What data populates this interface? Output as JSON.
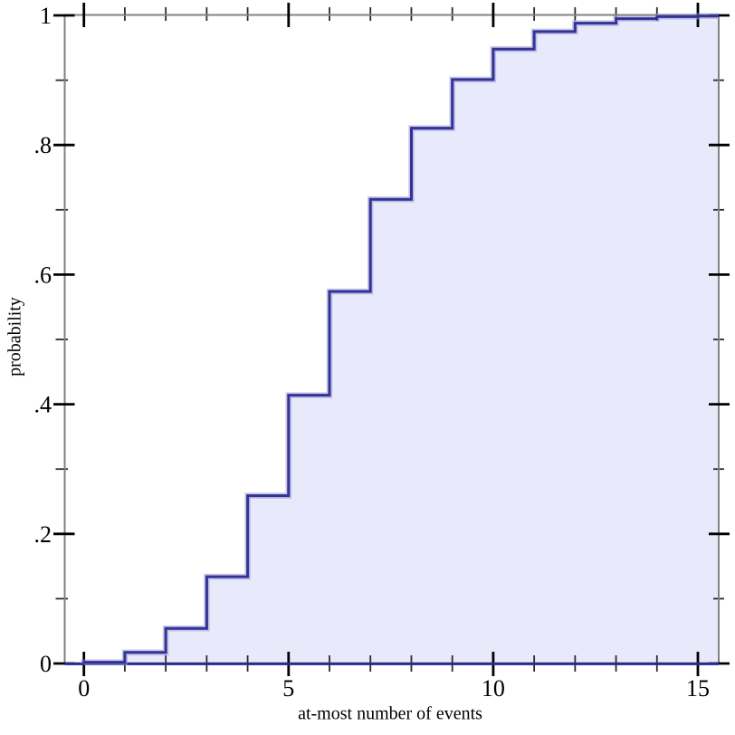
{
  "chart_data": {
    "type": "area",
    "subtype": "step-cdf",
    "title": "",
    "xlabel": "at-most number of events",
    "ylabel": "probability",
    "x": [
      0,
      1,
      2,
      3,
      4,
      5,
      6,
      7,
      8,
      9,
      10,
      11,
      12,
      13,
      14,
      15
    ],
    "cdf_values": [
      0.002,
      0.017,
      0.054,
      0.134,
      0.259,
      0.414,
      0.574,
      0.716,
      0.826,
      0.901,
      0.948,
      0.975,
      0.988,
      0.995,
      0.998,
      0.999
    ],
    "xlim": [
      -0.47,
      15.51
    ],
    "ylim": [
      0,
      1
    ],
    "grid": false,
    "legend": null,
    "x_major_ticks": {
      "values": [
        0,
        5,
        10,
        15
      ],
      "labels": [
        "0",
        "5",
        "10",
        "15"
      ]
    },
    "x_minor_ticks": [
      1,
      2,
      3,
      4,
      6,
      7,
      8,
      9,
      11,
      12,
      13,
      14
    ],
    "y_major_ticks": {
      "values": [
        0,
        0.2,
        0.4,
        0.6,
        0.8,
        1
      ],
      "labels": [
        "0",
        ".2",
        ".4",
        ".6",
        ".8",
        "1"
      ]
    },
    "y_minor_ticks": [
      0.1,
      0.3,
      0.5,
      0.7,
      0.9
    ],
    "colors": {
      "line": "#32329a",
      "line_halo": "#9b9bd0",
      "fill": "#e8eafc",
      "frame": "#828282",
      "tick_major": "#000000",
      "tick_minor": "#2b2b2b",
      "baseline": "#2a2a90",
      "text": "#000000",
      "background": "#ffffff"
    }
  }
}
